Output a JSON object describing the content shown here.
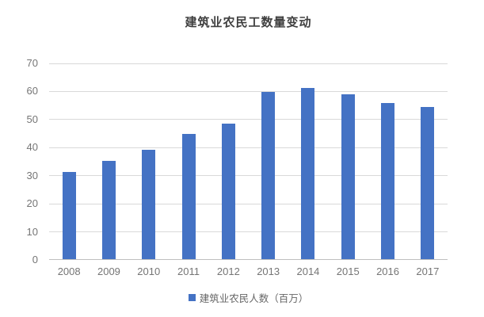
{
  "chart": {
    "title": "建筑业农民工数量变动",
    "legend_label": "建筑业农民人数（百万）"
  },
  "chart_data": {
    "type": "bar",
    "title": "建筑业农民工数量变动",
    "categories": [
      "2008",
      "2009",
      "2010",
      "2011",
      "2012",
      "2013",
      "2014",
      "2015",
      "2016",
      "2017"
    ],
    "series": [
      {
        "name": "建筑业农民人数（百万）",
        "values": [
          31,
          34.9,
          38.9,
          44.7,
          48.3,
          59.6,
          61.1,
          58.6,
          55.5,
          54.2
        ]
      }
    ],
    "xlabel": "",
    "ylabel": "",
    "ylim": [
      0,
      70
    ],
    "ytick_step": 10,
    "yticks": [
      0,
      10,
      20,
      30,
      40,
      50,
      60,
      70
    ],
    "grid": "horizontal",
    "legend_position": "bottom"
  },
  "colors": {
    "bar": "#4472c4",
    "gridline": "#d9d9d9",
    "axis_line": "#bfbfbf",
    "tick_label": "#757575",
    "title_text": "#3f3f3f",
    "legend_text": "#666666",
    "background": "#ffffff"
  }
}
